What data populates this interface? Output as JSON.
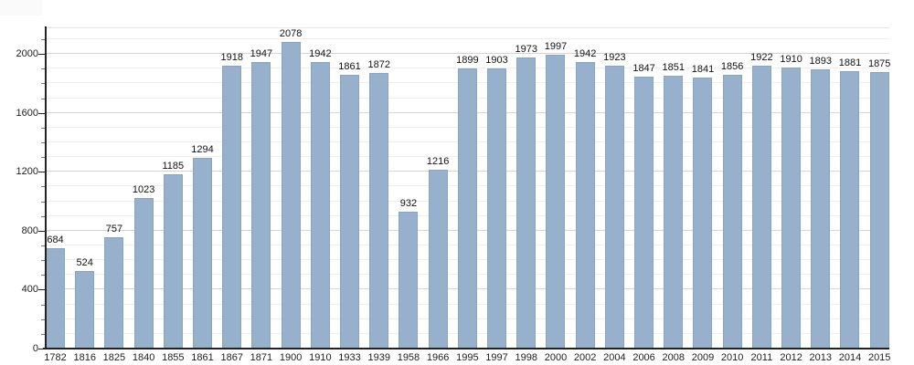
{
  "chart_data": {
    "type": "bar",
    "title": "",
    "xlabel": "",
    "ylabel": "",
    "categories": [
      "1782",
      "1816",
      "1825",
      "1840",
      "1855",
      "1861",
      "1867",
      "1871",
      "1900",
      "1910",
      "1933",
      "1939",
      "1958",
      "1966",
      "1995",
      "1997",
      "1998",
      "2000",
      "2002",
      "2004",
      "2006",
      "2008",
      "2009",
      "2010",
      "2011",
      "2012",
      "2013",
      "2014",
      "2015"
    ],
    "values": [
      684,
      524,
      757,
      1023,
      1185,
      1294,
      1918,
      1947,
      2078,
      1942,
      1861,
      1872,
      932,
      1216,
      1899,
      1903,
      1973,
      1997,
      1942,
      1923,
      1847,
      1851,
      1841,
      1856,
      1922,
      1910,
      1893,
      1881,
      1875
    ],
    "ylim": [
      0,
      2180
    ],
    "ytick_major_step": 400,
    "ytick_minor_step": 100,
    "ytick_major_labels": [
      "0",
      "400",
      "800",
      "1200",
      "1600",
      "2000"
    ],
    "grid": true,
    "legend_position": "none",
    "value_labels_shown": true,
    "colors": {
      "bar_fill": "#97b1cc",
      "bar_border": "#7d99b8",
      "axis_line": "#222222",
      "gridline_major": "#d4d4d4",
      "gridline_minor": "#efefef",
      "label_text": "#1d1d1d",
      "background": "#ffffff"
    }
  }
}
